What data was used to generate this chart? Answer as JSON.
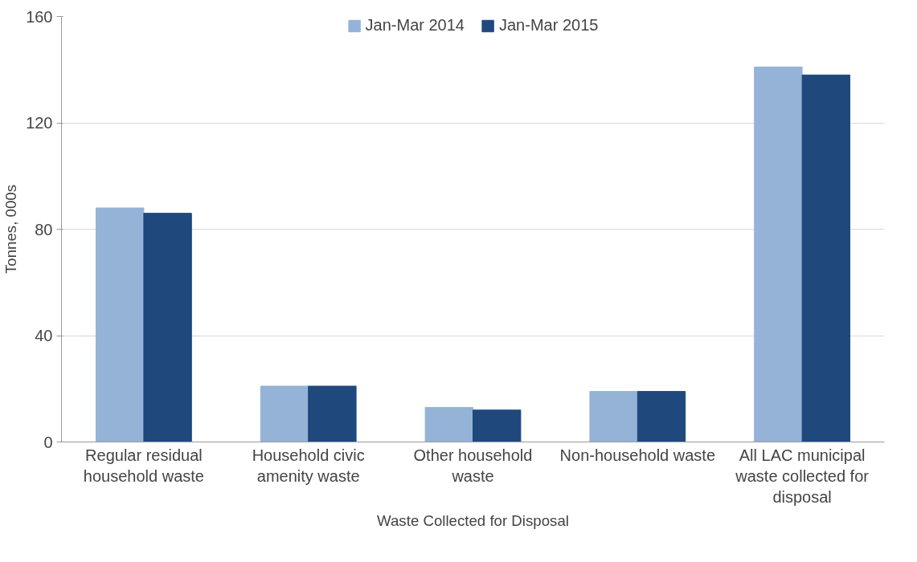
{
  "chart_data": {
    "type": "bar",
    "xlabel": "Waste Collected for Disposal",
    "ylabel": "Tonnes, 000s",
    "categories": [
      "Regular residual household waste",
      "Household civic amenity waste",
      "Other household waste",
      "Non-household waste",
      "All LAC municipal waste collected for disposal"
    ],
    "series": [
      {
        "name": "Jan-Mar 2014",
        "color": "#95b3d7",
        "values": [
          88,
          21,
          13,
          19,
          141
        ]
      },
      {
        "name": "Jan-Mar 2015",
        "color": "#1f497d",
        "values": [
          86,
          21,
          12,
          19,
          138
        ]
      }
    ],
    "ylim": [
      0,
      160
    ],
    "yticks": [
      0,
      40,
      80,
      120,
      160
    ],
    "grid": "y",
    "legend": "top"
  }
}
